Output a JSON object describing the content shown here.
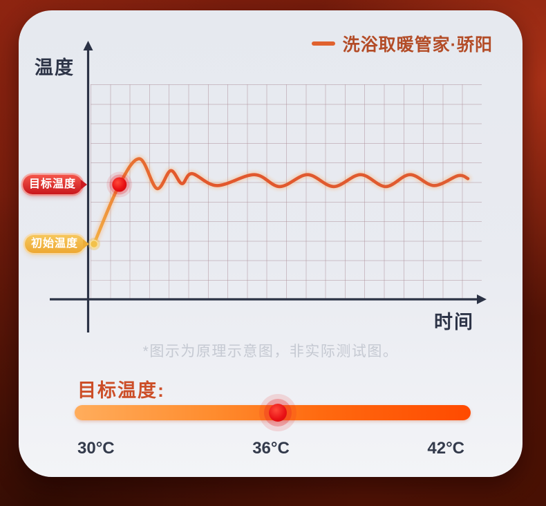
{
  "legend": {
    "label": "洗浴取暖管家·骄阳",
    "line_color": "#e0622f"
  },
  "chart": {
    "y_axis_label": "温度",
    "x_axis_label": "时间",
    "target_badge": "目标温度",
    "initial_badge": "初始温度",
    "footnote": "*图示为原理示意图，非实际测试图。",
    "colors": {
      "axis": "#2b3245",
      "curve": "#e2572d",
      "target_dot": "#e31419",
      "initial_dot": "#f2c14b",
      "grid": "#ac8c96"
    }
  },
  "slider": {
    "title": "目标温度:",
    "labels": [
      "30°C",
      "36°C",
      "42°C"
    ],
    "selected_value": "36°C",
    "track_colors": [
      "#ffad5c",
      "#ff4a00"
    ],
    "knob_color": "#e81014"
  },
  "chart_data": {
    "type": "line",
    "title": "",
    "xlabel": "时间",
    "ylabel": "温度",
    "xlim": [
      0,
      100
    ],
    "ylim": [
      28,
      40
    ],
    "grid": true,
    "legend_position": "top-right",
    "series": [
      {
        "name": "洗浴取暖管家·骄阳",
        "color": "#e2572d",
        "points": [
          [
            0,
            30.0
          ],
          [
            6.8,
            36.0
          ],
          [
            12.2,
            38.6
          ],
          [
            16.8,
            35.6
          ],
          [
            20.5,
            37.4
          ],
          [
            23.5,
            36.1
          ],
          [
            26.2,
            37.1
          ],
          [
            32.9,
            35.9
          ],
          [
            42.9,
            37.0
          ],
          [
            49.7,
            35.8
          ],
          [
            57.1,
            37.0
          ],
          [
            64.1,
            35.8
          ],
          [
            71.3,
            37.0
          ],
          [
            78.0,
            35.8
          ],
          [
            84.5,
            37.0
          ],
          [
            90.9,
            35.9
          ],
          [
            97.4,
            36.9
          ],
          [
            100,
            36.6
          ]
        ]
      }
    ],
    "markers": [
      {
        "label": "初始温度",
        "point_index": 0,
        "value": 30.0,
        "color": "#f2c14b"
      },
      {
        "label": "目标温度",
        "point_index": 1,
        "value": 36.0,
        "color": "#e31419"
      }
    ],
    "annotation": "*图示为原理示意图，非实际测试图。"
  }
}
